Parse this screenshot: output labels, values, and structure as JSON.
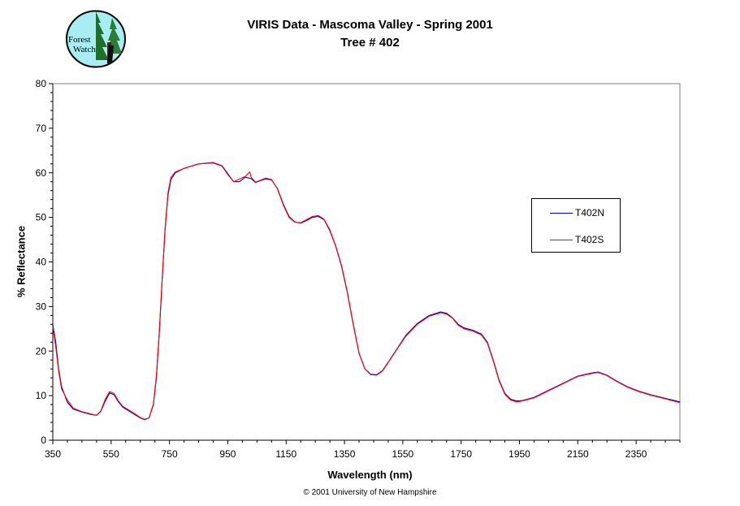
{
  "logo": {
    "text_line1": "Forest",
    "text_line2": "Watch"
  },
  "footer": "© 2001 University of New Hampshire",
  "chart_data": {
    "type": "line",
    "title": "VIRIS Data - Mascoma Valley  - Spring 2001",
    "subtitle": "Tree # 402",
    "xlabel": "Wavelength (nm)",
    "ylabel": "% Reflectance",
    "xlim": [
      350,
      2500
    ],
    "ylim": [
      0,
      80
    ],
    "xticks": [
      350,
      550,
      750,
      950,
      1150,
      1350,
      1550,
      1750,
      1950,
      2150,
      2350
    ],
    "yticks": [
      0,
      10,
      20,
      30,
      40,
      50,
      60,
      70,
      80
    ],
    "grid": false,
    "legend_position": "right",
    "series": [
      {
        "name": "T402N",
        "color": "#0000cc",
        "points": [
          [
            350,
            26
          ],
          [
            360,
            22
          ],
          [
            370,
            16
          ],
          [
            380,
            12
          ],
          [
            400,
            8.5
          ],
          [
            420,
            7
          ],
          [
            450,
            6.3
          ],
          [
            480,
            5.8
          ],
          [
            500,
            5.6
          ],
          [
            515,
            6.5
          ],
          [
            530,
            8.8
          ],
          [
            545,
            10.6
          ],
          [
            560,
            10.2
          ],
          [
            575,
            8.6
          ],
          [
            590,
            7.4
          ],
          [
            610,
            6.6
          ],
          [
            630,
            5.8
          ],
          [
            650,
            5
          ],
          [
            665,
            4.6
          ],
          [
            680,
            5
          ],
          [
            695,
            8
          ],
          [
            705,
            14
          ],
          [
            715,
            24
          ],
          [
            725,
            36
          ],
          [
            735,
            47
          ],
          [
            745,
            55
          ],
          [
            755,
            58.5
          ],
          [
            770,
            60
          ],
          [
            800,
            61
          ],
          [
            850,
            62
          ],
          [
            900,
            62.3
          ],
          [
            930,
            61.6
          ],
          [
            950,
            59.8
          ],
          [
            970,
            58
          ],
          [
            990,
            58
          ],
          [
            1010,
            59
          ],
          [
            1030,
            58.7
          ],
          [
            1045,
            57.8
          ],
          [
            1060,
            58.2
          ],
          [
            1080,
            58.6
          ],
          [
            1100,
            58.4
          ],
          [
            1120,
            56.5
          ],
          [
            1140,
            53
          ],
          [
            1160,
            50.2
          ],
          [
            1180,
            49
          ],
          [
            1200,
            48.7
          ],
          [
            1220,
            49.3
          ],
          [
            1240,
            50
          ],
          [
            1260,
            50.2
          ],
          [
            1280,
            49.5
          ],
          [
            1300,
            47
          ],
          [
            1320,
            43.5
          ],
          [
            1340,
            39
          ],
          [
            1360,
            33
          ],
          [
            1380,
            26
          ],
          [
            1400,
            19.5
          ],
          [
            1420,
            16
          ],
          [
            1440,
            14.8
          ],
          [
            1460,
            14.7
          ],
          [
            1480,
            15.6
          ],
          [
            1500,
            17.5
          ],
          [
            1530,
            20.5
          ],
          [
            1560,
            23.5
          ],
          [
            1600,
            26.2
          ],
          [
            1640,
            28
          ],
          [
            1680,
            28.8
          ],
          [
            1700,
            28.5
          ],
          [
            1720,
            27.5
          ],
          [
            1740,
            26
          ],
          [
            1760,
            25.2
          ],
          [
            1790,
            24.7
          ],
          [
            1820,
            23.8
          ],
          [
            1840,
            22
          ],
          [
            1860,
            18
          ],
          [
            1880,
            13.5
          ],
          [
            1900,
            10.5
          ],
          [
            1920,
            9.2
          ],
          [
            1940,
            8.8
          ],
          [
            1960,
            8.9
          ],
          [
            2000,
            9.6
          ],
          [
            2050,
            11.2
          ],
          [
            2100,
            12.8
          ],
          [
            2150,
            14.4
          ],
          [
            2200,
            15.1
          ],
          [
            2220,
            15.3
          ],
          [
            2250,
            14.6
          ],
          [
            2280,
            13.4
          ],
          [
            2320,
            12
          ],
          [
            2360,
            11
          ],
          [
            2400,
            10.2
          ],
          [
            2450,
            9.4
          ],
          [
            2500,
            8.6
          ]
        ]
      },
      {
        "name": "T402S",
        "color": "#ff0000",
        "points": [
          [
            350,
            25.5
          ],
          [
            360,
            21
          ],
          [
            370,
            15.5
          ],
          [
            380,
            11.5
          ],
          [
            400,
            9
          ],
          [
            420,
            7.2
          ],
          [
            450,
            6.4
          ],
          [
            480,
            5.9
          ],
          [
            500,
            5.6
          ],
          [
            515,
            6.6
          ],
          [
            530,
            9.2
          ],
          [
            545,
            10.9
          ],
          [
            560,
            10.5
          ],
          [
            575,
            8.8
          ],
          [
            590,
            7.6
          ],
          [
            610,
            6.8
          ],
          [
            630,
            6
          ],
          [
            650,
            5.1
          ],
          [
            665,
            4.7
          ],
          [
            680,
            5
          ],
          [
            695,
            8.2
          ],
          [
            705,
            14.5
          ],
          [
            715,
            24.5
          ],
          [
            725,
            36.5
          ],
          [
            735,
            47.5
          ],
          [
            745,
            55.5
          ],
          [
            755,
            59
          ],
          [
            770,
            60.2
          ],
          [
            800,
            61
          ],
          [
            850,
            62
          ],
          [
            900,
            62.2
          ],
          [
            930,
            61.5
          ],
          [
            950,
            59.6
          ],
          [
            970,
            58
          ],
          [
            990,
            58.6
          ],
          [
            1010,
            59.2
          ],
          [
            1025,
            60.2
          ],
          [
            1030,
            59
          ],
          [
            1045,
            57.9
          ],
          [
            1060,
            58.3
          ],
          [
            1080,
            58.8
          ],
          [
            1100,
            58.5
          ],
          [
            1120,
            56.4
          ],
          [
            1140,
            52.8
          ],
          [
            1160,
            50
          ],
          [
            1180,
            48.9
          ],
          [
            1200,
            48.8
          ],
          [
            1220,
            49.5
          ],
          [
            1240,
            50.2
          ],
          [
            1260,
            50.4
          ],
          [
            1280,
            49.6
          ],
          [
            1300,
            47.2
          ],
          [
            1320,
            43.6
          ],
          [
            1340,
            39.2
          ],
          [
            1360,
            33.2
          ],
          [
            1380,
            26.2
          ],
          [
            1400,
            19.6
          ],
          [
            1420,
            16
          ],
          [
            1440,
            14.7
          ],
          [
            1460,
            14.6
          ],
          [
            1480,
            15.5
          ],
          [
            1500,
            17.4
          ],
          [
            1530,
            20.4
          ],
          [
            1560,
            23.3
          ],
          [
            1600,
            26
          ],
          [
            1640,
            27.8
          ],
          [
            1680,
            28.6
          ],
          [
            1700,
            28.3
          ],
          [
            1720,
            27.4
          ],
          [
            1740,
            25.8
          ],
          [
            1760,
            25
          ],
          [
            1790,
            24.5
          ],
          [
            1820,
            23.6
          ],
          [
            1840,
            21.8
          ],
          [
            1860,
            17.8
          ],
          [
            1880,
            13.3
          ],
          [
            1900,
            10.3
          ],
          [
            1920,
            9
          ],
          [
            1940,
            8.6
          ],
          [
            1960,
            8.8
          ],
          [
            2000,
            9.5
          ],
          [
            2050,
            11.1
          ],
          [
            2100,
            12.7
          ],
          [
            2150,
            14.3
          ],
          [
            2200,
            15
          ],
          [
            2220,
            15.2
          ],
          [
            2250,
            14.5
          ],
          [
            2280,
            13.3
          ],
          [
            2320,
            11.9
          ],
          [
            2360,
            10.9
          ],
          [
            2400,
            10.1
          ],
          [
            2450,
            9.3
          ],
          [
            2500,
            8.4
          ]
        ]
      }
    ]
  }
}
